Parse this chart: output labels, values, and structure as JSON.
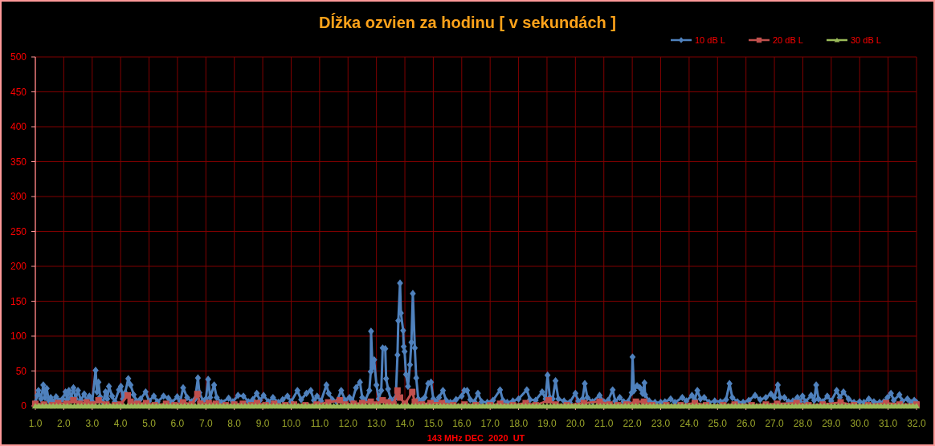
{
  "chart_data": {
    "type": "line",
    "title": "Dĺžka ozvien za hodinu [ v sekundách ]",
    "xlabel": "143 MHz DEC  2020  UT",
    "xlim": [
      1,
      32
    ],
    "xticks": [
      {
        "value": 1,
        "label": "1.0"
      },
      {
        "value": 2,
        "label": "2.0"
      },
      {
        "value": 3,
        "label": "3.0"
      },
      {
        "value": 4,
        "label": "4.0"
      },
      {
        "value": 5,
        "label": "5.0"
      },
      {
        "value": 6,
        "label": "6.0"
      },
      {
        "value": 7,
        "label": "7.0"
      },
      {
        "value": 8,
        "label": "8.0"
      },
      {
        "value": 9,
        "label": "9.0"
      },
      {
        "value": 10,
        "label": "10.0"
      },
      {
        "value": 11,
        "label": "11.0"
      },
      {
        "value": 12,
        "label": "12.0"
      },
      {
        "value": 13,
        "label": "13.0"
      },
      {
        "value": 14,
        "label": "14.0"
      },
      {
        "value": 15,
        "label": "15.0"
      },
      {
        "value": 16,
        "label": "16.0"
      },
      {
        "value": 17,
        "label": "17.0"
      },
      {
        "value": 18,
        "label": "18.0"
      },
      {
        "value": 19,
        "label": "19.0"
      },
      {
        "value": 20,
        "label": "20.0"
      },
      {
        "value": 21,
        "label": "21.0"
      },
      {
        "value": 22,
        "label": "22.0"
      },
      {
        "value": 23,
        "label": "23.0"
      },
      {
        "value": 24,
        "label": "24.0"
      },
      {
        "value": 25,
        "label": "25.0"
      },
      {
        "value": 26,
        "label": "26.0"
      },
      {
        "value": 27,
        "label": "27.0"
      },
      {
        "value": 28,
        "label": "28.0"
      },
      {
        "value": 29,
        "label": "29.0"
      },
      {
        "value": 30,
        "label": "30.0"
      },
      {
        "value": 31,
        "label": "31.0"
      },
      {
        "value": 32,
        "label": "32.0"
      }
    ],
    "ylim": [
      0,
      500
    ],
    "yticks": [
      0,
      50,
      100,
      150,
      200,
      250,
      300,
      350,
      400,
      450,
      500
    ],
    "grid": true,
    "legend": "top right",
    "line_style": "solid",
    "series": [
      {
        "name": "10 dB L",
        "color": "#4f81bd",
        "marker": "diamond",
        "x": [
          1.0,
          1.07,
          1.11,
          1.2,
          1.28,
          1.34,
          1.4,
          1.47,
          1.54,
          1.63,
          1.73,
          1.85,
          1.96,
          2.06,
          2.12,
          2.18,
          2.26,
          2.34,
          2.42,
          2.5,
          2.6,
          2.72,
          2.8,
          2.9,
          3.0,
          3.12,
          3.17,
          3.22,
          3.28,
          3.38,
          3.47,
          3.53,
          3.59,
          3.7,
          3.8,
          3.94,
          4.01,
          4.08,
          4.16,
          4.27,
          4.35,
          4.46,
          4.56,
          4.7,
          4.88,
          5.0,
          5.17,
          5.3,
          5.51,
          5.68,
          5.8,
          5.99,
          6.1,
          6.2,
          6.34,
          6.5,
          6.62,
          6.72,
          6.77,
          6.9,
          7.0,
          7.08,
          7.15,
          7.29,
          7.38,
          7.55,
          7.8,
          7.95,
          8.13,
          8.32,
          8.5,
          8.65,
          8.79,
          8.9,
          9.03,
          9.2,
          9.36,
          9.55,
          9.7,
          9.87,
          10.0,
          10.22,
          10.35,
          10.54,
          10.69,
          10.8,
          10.91,
          11.05,
          11.24,
          11.32,
          11.45,
          11.6,
          11.76,
          11.9,
          12.05,
          12.15,
          12.28,
          12.42,
          12.5,
          12.6,
          12.75,
          12.8,
          12.81,
          12.86,
          12.92,
          13.0,
          13.08,
          13.17,
          13.22,
          13.31,
          13.34,
          13.41,
          13.5,
          13.6,
          13.68,
          13.74,
          13.77,
          13.83,
          13.86,
          13.94,
          13.96,
          13.99,
          14.04,
          14.11,
          14.18,
          14.23,
          14.28,
          14.35,
          14.4,
          14.47,
          14.6,
          14.7,
          14.82,
          14.92,
          15.0,
          15.1,
          15.2,
          15.34,
          15.45,
          15.6,
          15.8,
          16.0,
          16.09,
          16.19,
          16.3,
          16.45,
          16.57,
          16.7,
          16.9,
          17.1,
          17.35,
          17.45,
          17.6,
          17.8,
          18.0,
          18.29,
          18.4,
          18.6,
          18.83,
          18.95,
          19.02,
          19.1,
          19.2,
          19.3,
          19.4,
          19.6,
          19.8,
          20.0,
          20.1,
          20.25,
          20.33,
          20.42,
          20.6,
          20.85,
          21.0,
          21.15,
          21.31,
          21.4,
          21.56,
          21.7,
          21.85,
          21.98,
          22.01,
          22.06,
          22.17,
          22.27,
          22.36,
          22.43,
          22.45,
          22.6,
          22.8,
          23.0,
          23.15,
          23.35,
          23.5,
          23.76,
          23.9,
          24.1,
          24.2,
          24.29,
          24.4,
          24.53,
          24.7,
          24.9,
          25.1,
          25.3,
          25.42,
          25.52,
          25.7,
          25.9,
          26.1,
          26.32,
          26.5,
          26.7,
          26.88,
          27.0,
          27.12,
          27.2,
          27.35,
          27.5,
          27.65,
          27.81,
          27.9,
          27.99,
          28.1,
          28.29,
          28.4,
          28.47,
          28.55,
          28.7,
          28.86,
          29.0,
          29.19,
          29.3,
          29.43,
          29.61,
          29.8,
          30.0,
          30.15,
          30.32,
          30.5,
          30.7,
          30.85,
          30.98,
          31.1,
          31.2,
          31.4,
          31.5,
          31.68,
          31.8,
          31.92,
          32.0
        ],
        "values": [
          5,
          15,
          22,
          10,
          30,
          12,
          25,
          8,
          12,
          6,
          13,
          7,
          10,
          20,
          9,
          22,
          12,
          26,
          10,
          22,
          8,
          17,
          8,
          14,
          6,
          51,
          20,
          34,
          13,
          5,
          20,
          10,
          28,
          14,
          6,
          23,
          28,
          10,
          19,
          39,
          30,
          16,
          7,
          10,
          20,
          7,
          14,
          6,
          14,
          11,
          5,
          13,
          7,
          26,
          12,
          6,
          10,
          40,
          19,
          7,
          10,
          38,
          12,
          30,
          12,
          5,
          11,
          6,
          15,
          14,
          6,
          9,
          18,
          8,
          15,
          6,
          12,
          5,
          9,
          14,
          6,
          22,
          9,
          18,
          22,
          8,
          14,
          7,
          30,
          18,
          9,
          6,
          22,
          8,
          12,
          7,
          26,
          34,
          12,
          7,
          22,
          49,
          107,
          55,
          66,
          30,
          10,
          22,
          83,
          82,
          39,
          24,
          10,
          6,
          12,
          73,
          122,
          176,
          133,
          108,
          85,
          78,
          45,
          28,
          59,
          91,
          161,
          83,
          40,
          10,
          8,
          12,
          32,
          34,
          10,
          6,
          12,
          22,
          8,
          5,
          9,
          14,
          22,
          22,
          9,
          6,
          18,
          6,
          5,
          8,
          23,
          8,
          5,
          7,
          10,
          23,
          9,
          8,
          20,
          10,
          44,
          12,
          10,
          36,
          10,
          7,
          5,
          18,
          7,
          10,
          32,
          12,
          6,
          15,
          6,
          8,
          23,
          7,
          12,
          6,
          6,
          19,
          70,
          22,
          29,
          26,
          18,
          33,
          16,
          7,
          5,
          5,
          6,
          10,
          5,
          12,
          7,
          15,
          9,
          22,
          10,
          12,
          5,
          7,
          6,
          9,
          32,
          12,
          6,
          5,
          8,
          15,
          9,
          12,
          17,
          12,
          30,
          12,
          12,
          6,
          7,
          12,
          6,
          14,
          6,
          15,
          8,
          30,
          10,
          6,
          14,
          7,
          22,
          12,
          20,
          10,
          5,
          6,
          5,
          10,
          6,
          5,
          6,
          12,
          18,
          8,
          16,
          7,
          10,
          5,
          8,
          5
        ]
      },
      {
        "name": "20 dB L",
        "color": "#c0504d",
        "marker": "square",
        "x": [
          1.0,
          1.3,
          1.6,
          1.8,
          2.1,
          2.34,
          2.55,
          2.8,
          3.0,
          3.22,
          3.5,
          3.8,
          4.0,
          4.25,
          4.35,
          4.6,
          4.9,
          5.2,
          5.6,
          5.9,
          6.2,
          6.5,
          6.7,
          6.8,
          7.1,
          7.35,
          7.7,
          8.0,
          8.3,
          8.6,
          8.8,
          9.1,
          9.4,
          9.8,
          10.1,
          10.5,
          10.9,
          11.3,
          11.71,
          11.9,
          12.2,
          12.5,
          12.8,
          13.0,
          13.22,
          13.4,
          13.6,
          13.74,
          13.83,
          14.0,
          14.26,
          14.35,
          14.6,
          14.9,
          15.3,
          15.7,
          16.1,
          16.5,
          17.0,
          17.35,
          17.8,
          18.25,
          18.6,
          19.06,
          19.3,
          19.7,
          20.3,
          20.85,
          21.2,
          21.5,
          21.8,
          22.13,
          22.41,
          22.7,
          23.2,
          23.7,
          24.2,
          24.6,
          25.2,
          25.6,
          26.2,
          26.7,
          27.1,
          27.78,
          28.2,
          28.7,
          29.33,
          29.8,
          30.3,
          30.93,
          31.4,
          32.0
        ],
        "values": [
          3,
          2,
          1,
          4,
          3,
          8,
          3,
          5,
          2,
          8,
          2,
          1,
          2,
          15,
          6,
          3,
          4,
          1,
          3,
          1,
          5,
          2,
          17,
          3,
          4,
          3,
          1,
          2,
          3,
          1,
          4,
          1,
          3,
          1,
          2,
          1,
          2,
          5,
          8,
          2,
          3,
          4,
          6,
          2,
          8,
          5,
          2,
          22,
          12,
          3,
          20,
          6,
          2,
          4,
          4,
          1,
          2,
          1,
          1,
          3,
          1,
          4,
          1,
          8,
          2,
          1,
          4,
          6,
          2,
          1,
          2,
          6,
          6,
          1,
          1,
          1,
          4,
          1,
          1,
          2,
          1,
          2,
          3,
          4,
          1,
          2,
          5,
          1,
          1,
          4,
          2,
          2
        ]
      },
      {
        "name": "30 dB L",
        "color": "#9bbb59",
        "marker": "triangle",
        "x": [
          1,
          1.125,
          1.25,
          1.375,
          1.5,
          1.625,
          1.75,
          1.875,
          2,
          2.125,
          2.25,
          2.375,
          2.5,
          2.625,
          2.75,
          2.875,
          3,
          3.125,
          3.25,
          3.375,
          3.5,
          3.625,
          3.75,
          3.875,
          4,
          4.125,
          4.25,
          4.375,
          4.5,
          4.625,
          4.75,
          4.875,
          5,
          5.125,
          5.25,
          5.375,
          5.5,
          5.625,
          5.75,
          5.875,
          6,
          6.125,
          6.25,
          6.375,
          6.5,
          6.625,
          6.75,
          6.875,
          7,
          7.125,
          7.25,
          7.375,
          7.5,
          7.625,
          7.75,
          7.875,
          8,
          8.125,
          8.25,
          8.375,
          8.5,
          8.625,
          8.75,
          8.875,
          9,
          9.125,
          9.25,
          9.375,
          9.5,
          9.625,
          9.75,
          9.875,
          10,
          10.125,
          10.25,
          10.375,
          10.5,
          10.625,
          10.75,
          10.875,
          11,
          11.125,
          11.25,
          11.375,
          11.5,
          11.625,
          11.75,
          11.875,
          12,
          12.125,
          12.25,
          12.375,
          12.5,
          12.625,
          12.75,
          12.875,
          13,
          13.125,
          13.25,
          13.375,
          13.5,
          13.625,
          13.75,
          13.875,
          14,
          14.125,
          14.25,
          14.375,
          14.5,
          14.625,
          14.75,
          14.875,
          15,
          15.125,
          15.25,
          15.375,
          15.5,
          15.625,
          15.75,
          15.875,
          16,
          16.125,
          16.25,
          16.375,
          16.5,
          16.625,
          16.75,
          16.875,
          17,
          17.125,
          17.25,
          17.375,
          17.5,
          17.625,
          17.75,
          17.875,
          18,
          18.125,
          18.25,
          18.375,
          18.5,
          18.625,
          18.75,
          18.875,
          19,
          19.125,
          19.25,
          19.375,
          19.5,
          19.625,
          19.75,
          19.875,
          20,
          20.125,
          20.25,
          20.375,
          20.5,
          20.625,
          20.75,
          20.875,
          21,
          21.125,
          21.25,
          21.375,
          21.5,
          21.625,
          21.75,
          21.875,
          22,
          22.125,
          22.25,
          22.375,
          22.5,
          22.625,
          22.75,
          22.875,
          23,
          23.125,
          23.25,
          23.375,
          23.5,
          23.625,
          23.75,
          23.875,
          24,
          24.125,
          24.25,
          24.375,
          24.5,
          24.625,
          24.75,
          24.875,
          25,
          25.125,
          25.25,
          25.375,
          25.5,
          25.625,
          25.75,
          25.875,
          26,
          26.125,
          26.25,
          26.375,
          26.5,
          26.625,
          26.75,
          26.875,
          27,
          27.125,
          27.25,
          27.375,
          27.5,
          27.625,
          27.75,
          27.875,
          28,
          28.125,
          28.25,
          28.375,
          28.5,
          28.625,
          28.75,
          28.875,
          29,
          29.125,
          29.25,
          29.375,
          29.5,
          29.625,
          29.75,
          29.875,
          30,
          30.125,
          30.25,
          30.375,
          30.5,
          30.625,
          30.75,
          30.875,
          31,
          31.125,
          31.25,
          31.375,
          31.5,
          31.625,
          31.75,
          31.875,
          32
        ],
        "values": [
          0,
          0,
          0,
          0,
          0,
          0,
          0,
          0,
          0,
          0,
          0,
          0,
          0,
          0,
          0,
          0,
          0,
          0,
          0,
          0,
          0,
          0,
          0,
          0,
          0,
          0,
          0,
          0,
          0,
          0,
          0,
          0,
          0,
          0,
          0,
          0,
          0,
          0,
          0,
          0,
          0,
          0,
          0,
          0,
          0,
          0,
          0,
          0,
          0,
          0,
          0,
          0,
          0,
          0,
          0,
          0,
          0,
          0,
          0,
          0,
          0,
          0,
          0,
          0,
          0,
          0,
          0,
          0,
          0,
          0,
          0,
          0,
          0,
          0,
          0,
          0,
          0,
          0,
          0,
          0,
          0,
          0,
          0,
          0,
          0,
          0,
          0,
          0,
          0,
          0,
          0,
          0,
          0,
          0,
          0,
          0,
          0,
          0,
          0,
          0,
          0,
          0,
          0,
          0,
          0,
          0,
          0,
          0,
          0,
          0,
          0,
          0,
          0,
          0,
          0,
          0,
          0,
          0,
          0,
          0,
          0,
          0,
          0,
          0,
          0,
          0,
          0,
          0,
          0,
          0,
          0,
          0,
          0,
          0,
          0,
          0,
          0,
          0,
          0,
          0,
          0,
          0,
          0,
          0,
          0,
          0,
          0,
          0,
          0,
          0,
          0,
          0,
          0,
          0,
          0,
          0,
          0,
          0,
          0,
          0,
          0,
          0,
          0,
          0,
          0,
          0,
          0,
          0,
          0,
          0,
          0,
          0,
          0,
          0,
          0,
          0,
          0,
          0,
          0,
          0,
          0,
          0,
          0,
          0,
          0,
          0,
          0,
          0,
          0,
          0,
          0,
          0,
          0,
          0,
          0,
          0,
          0,
          0,
          0,
          0,
          0,
          0,
          0,
          0,
          0,
          0,
          0,
          0,
          0,
          0,
          0,
          0,
          0,
          0,
          0,
          0,
          0,
          0,
          0,
          0,
          0,
          0,
          0,
          0,
          0,
          0,
          0,
          0,
          0,
          0,
          0,
          0,
          0,
          0,
          0,
          0,
          0,
          0,
          0,
          0,
          0,
          0,
          0,
          0,
          0,
          0,
          0,
          0,
          0
        ]
      }
    ]
  }
}
